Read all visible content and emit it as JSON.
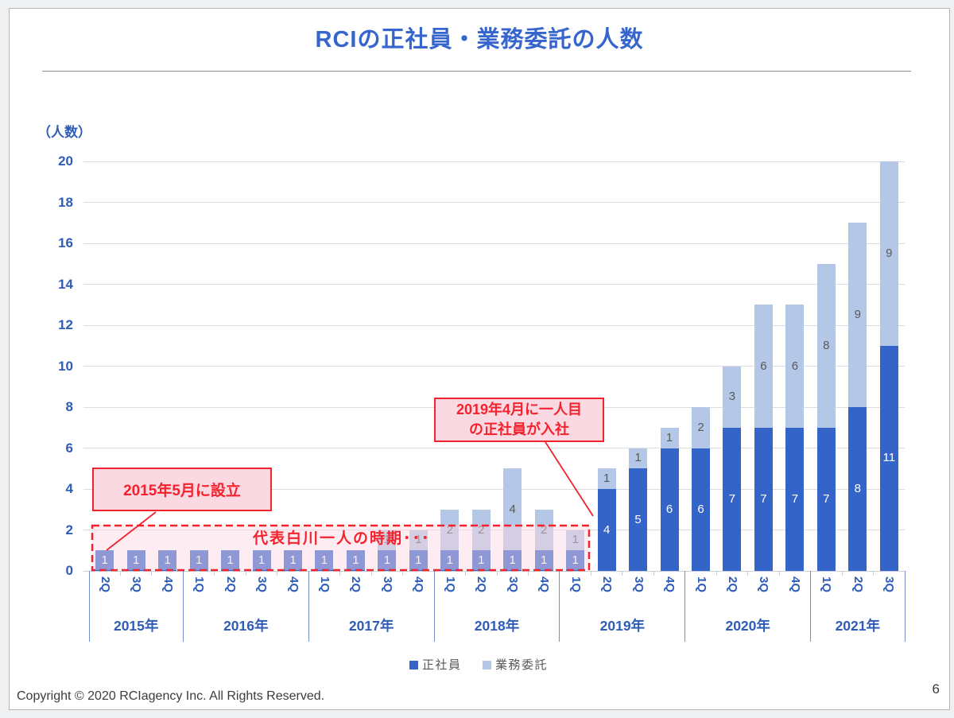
{
  "page": {
    "copyright": "Copyright © 2020 RCIagency Inc. All Rights Reserved.",
    "page_number": "6"
  },
  "chart_data": {
    "type": "bar",
    "stacked": true,
    "title": "RCIの正社員・業務委託の人数",
    "axis_unit_label": "（人数）",
    "ylim": [
      0,
      20
    ],
    "ytick_step": 2,
    "grid": true,
    "legend_position": "bottom",
    "x_groups": [
      {
        "year": "2015年",
        "quarters": [
          "2Q",
          "3Q",
          "4Q"
        ]
      },
      {
        "year": "2016年",
        "quarters": [
          "1Q",
          "2Q",
          "3Q",
          "4Q"
        ]
      },
      {
        "year": "2017年",
        "quarters": [
          "1Q",
          "2Q",
          "3Q",
          "4Q"
        ]
      },
      {
        "year": "2018年",
        "quarters": [
          "1Q",
          "2Q",
          "3Q",
          "4Q"
        ]
      },
      {
        "year": "2019年",
        "quarters": [
          "1Q",
          "2Q",
          "3Q",
          "4Q"
        ]
      },
      {
        "year": "2020年",
        "quarters": [
          "1Q",
          "2Q",
          "3Q",
          "4Q"
        ]
      },
      {
        "year": "2021年",
        "quarters": [
          "1Q",
          "2Q",
          "3Q"
        ]
      }
    ],
    "series": [
      {
        "name": "正社員",
        "color": "#3464c8",
        "label_color": "#ffffff",
        "values": [
          1,
          1,
          1,
          1,
          1,
          1,
          1,
          1,
          1,
          1,
          1,
          1,
          1,
          1,
          1,
          1,
          4,
          5,
          6,
          6,
          7,
          7,
          7,
          7,
          8,
          11
        ]
      },
      {
        "name": "業務委託",
        "color": "#b4c7e7",
        "label_color": "#595959",
        "values": [
          0,
          0,
          0,
          0,
          0,
          0,
          0,
          0,
          0,
          1,
          1,
          2,
          2,
          4,
          2,
          1,
          1,
          1,
          1,
          2,
          3,
          6,
          6,
          8,
          9,
          9
        ]
      }
    ]
  },
  "annotations": {
    "founding": "2015年5月に設立",
    "first_employee_line1": "2019年4月に一人目",
    "first_employee_line2": "の正社員が入社",
    "solo_period": "代表白川一人の時期･･･"
  },
  "colors": {
    "title_blue": "#3565cd",
    "axis_blue": "#2f5cb8",
    "seishain_blue": "#3464c8",
    "gyomuitaku_blue": "#b4c7e7",
    "annotation_red": "#f4222d",
    "annotation_pink": "#fbd9e3",
    "legend_text": "#595959",
    "gridline": "#dadde2"
  }
}
